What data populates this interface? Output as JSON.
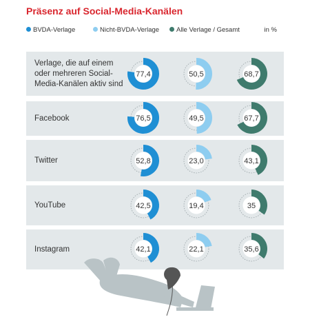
{
  "title": "Präsenz auf Social-Media-Kanälen",
  "legend": [
    {
      "label": "BVDA-Verlage",
      "color": "#1f8fd4"
    },
    {
      "label": "Nicht-BVDA-Verlage",
      "color": "#8ecdf0"
    },
    {
      "label": "Alle Verlage / Gesamt",
      "color": "#3f7b6d"
    }
  ],
  "unit": "in %",
  "chart_data": {
    "type": "pie",
    "title": "Präsenz auf Social-Media-Kanälen",
    "unit": "in %",
    "categories": [
      "Verlage, die auf einem oder mehreren Social-Media-Kanälen aktiv sind",
      "Facebook",
      "Twitter",
      "YouTube",
      "Instagram"
    ],
    "series": [
      {
        "name": "BVDA-Verlage",
        "color": "#1f8fd4",
        "values": [
          77.4,
          76.5,
          52.8,
          42.5,
          42.1
        ],
        "labels": [
          "77,4",
          "76,5",
          "52,8",
          "42,5",
          "42,1"
        ]
      },
      {
        "name": "Nicht-BVDA-Verlage",
        "color": "#8ecdf0",
        "values": [
          50.5,
          49.5,
          23.0,
          19.4,
          22.1
        ],
        "labels": [
          "50,5",
          "49,5",
          "23,0",
          "19,4",
          "22,1"
        ]
      },
      {
        "name": "Alle Verlage / Gesamt",
        "color": "#3f7b6d",
        "values": [
          68.7,
          67.7,
          43.1,
          35,
          35.6
        ],
        "labels": [
          "68,7",
          "67,7",
          "43,1",
          "35",
          "35,6"
        ]
      }
    ],
    "max": 100
  },
  "rows": [
    {
      "label": "Verlage, die auf einem oder mehreren Social-Media-Kanälen aktiv sind"
    },
    {
      "label": "Facebook"
    },
    {
      "label": "Twitter"
    },
    {
      "label": "YouTube"
    },
    {
      "label": "Instagram"
    }
  ]
}
